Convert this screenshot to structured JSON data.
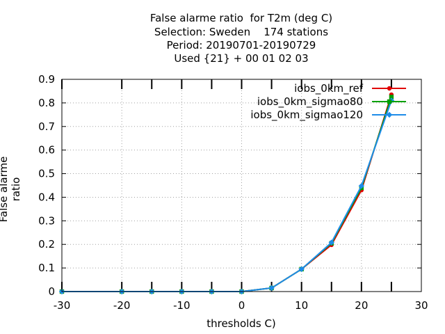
{
  "chart_data": {
    "type": "line",
    "title_lines": [
      "False alarme ratio  for T2m (deg C)",
      "Selection: Sweden    174 stations",
      "Period: 20190701-20190729",
      "Used {21} + 00 01 02 03"
    ],
    "xlabel": "thresholds C)",
    "ylabel": "False alarme ratio",
    "xlim": [
      -30,
      30
    ],
    "ylim": [
      0,
      0.9
    ],
    "xticks": [
      "-30",
      "-20",
      "-10",
      "0",
      "10",
      "20",
      "30"
    ],
    "yticks": [
      "0",
      "0.1",
      "0.2",
      "0.3",
      "0.4",
      "0.5",
      "0.6",
      "0.7",
      "0.8",
      "0.9"
    ],
    "grid": true,
    "legend_position": "top-right",
    "x": [
      -30,
      -20,
      -15,
      -10,
      -5,
      0,
      5,
      10,
      15,
      20,
      25
    ],
    "series": [
      {
        "name": "iobs_0km_ref",
        "color": "#e00000",
        "marker": "circle",
        "values": [
          0,
          0,
          0,
          0,
          0,
          0,
          0.015,
          0.095,
          0.198,
          0.43,
          0.835
        ]
      },
      {
        "name": "iobs_0km_sigmao80",
        "color": "#00a000",
        "marker": "square",
        "values": [
          0,
          0,
          0,
          0,
          0,
          0,
          0.015,
          0.095,
          0.205,
          0.44,
          0.825
        ]
      },
      {
        "name": "iobs_0km_sigmao120",
        "color": "#1e8ce8",
        "marker": "diamond",
        "values": [
          0,
          0,
          0,
          0,
          0,
          0,
          0.015,
          0.095,
          0.208,
          0.448,
          0.81
        ]
      }
    ]
  }
}
